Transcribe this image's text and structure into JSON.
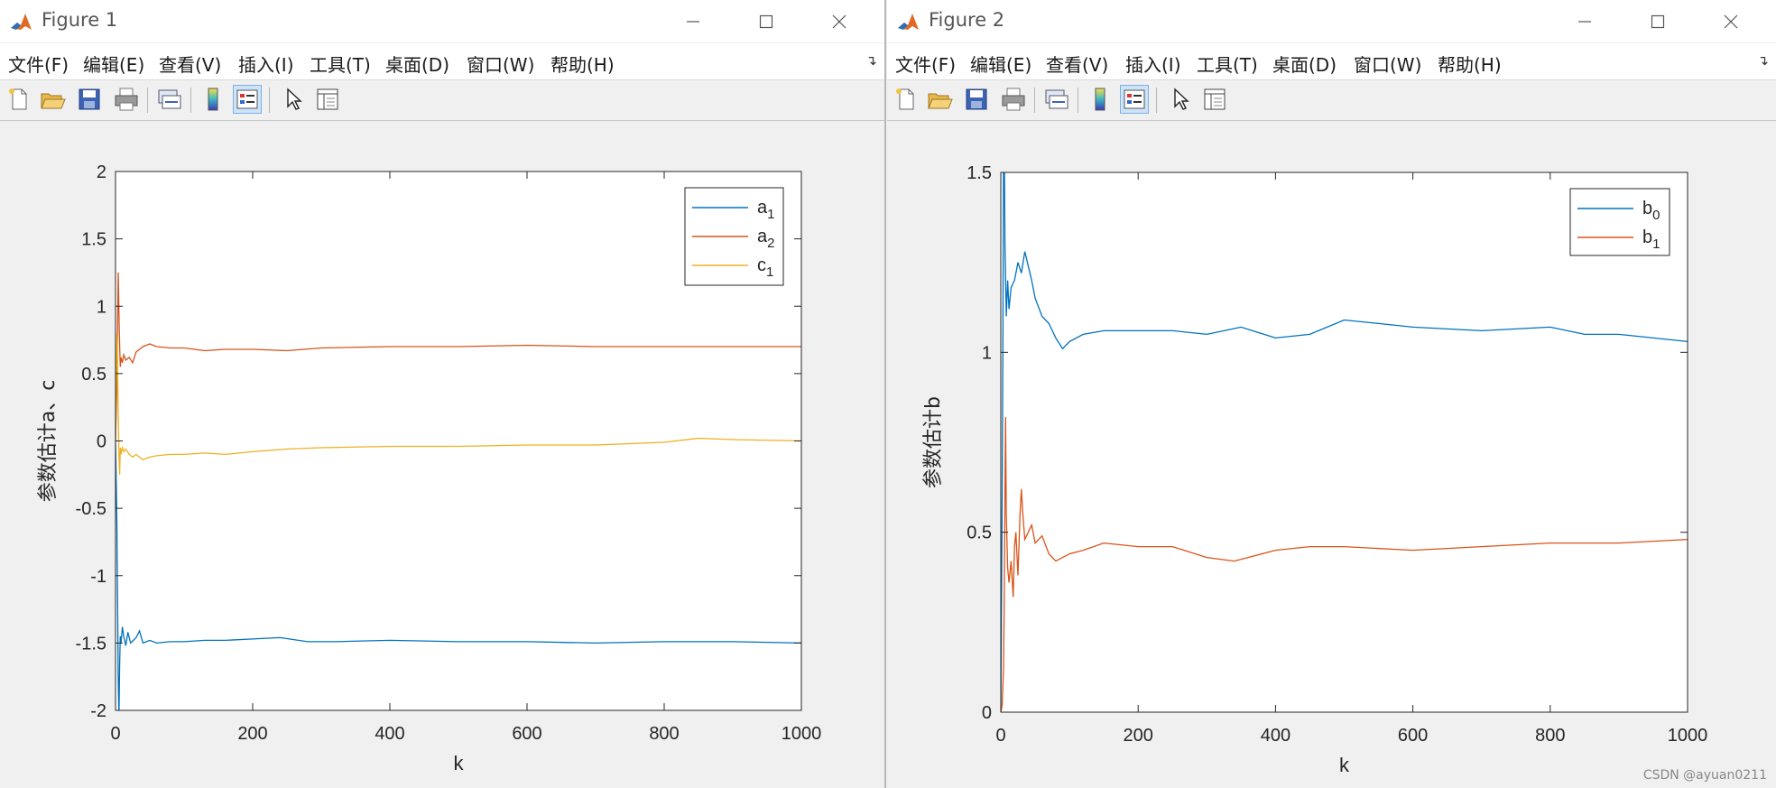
{
  "windows": [
    {
      "title": "Figure 1",
      "menu": [
        "文件(F)",
        "编辑(E)",
        "查看(V)",
        "插入(I)",
        "工具(T)",
        "桌面(D)",
        "窗口(W)",
        "帮助(H)"
      ]
    },
    {
      "title": "Figure 2",
      "menu": [
        "文件(F)",
        "编辑(E)",
        "查看(V)",
        "插入(I)",
        "工具(T)",
        "桌面(D)",
        "窗口(W)",
        "帮助(H)"
      ]
    }
  ],
  "toolbar_icons": [
    "new-figure-icon",
    "open-file-icon",
    "save-icon",
    "print-icon",
    "link-plot-icon",
    "colorbar-icon",
    "legend-icon",
    "edit-plot-icon",
    "property-inspector-icon"
  ],
  "watermark": "CSDN @ayuan0211",
  "colors": {
    "blue": "#0072BD",
    "orange": "#D95319",
    "yellow": "#EDB120"
  },
  "chart_data": [
    {
      "type": "line",
      "xlabel": "k",
      "ylabel": "参数估计a、c",
      "xlim": [
        0,
        1000
      ],
      "ylim": [
        -2,
        2
      ],
      "xticks": [
        "0",
        "200",
        "400",
        "600",
        "800",
        "1000"
      ],
      "yticks": [
        "-2",
        "-1.5",
        "-1",
        "-0.5",
        "0",
        "0.5",
        "1",
        "1.5",
        "2"
      ],
      "legend_position": "top-right",
      "series": [
        {
          "name": "a",
          "sub": "1",
          "color": "#0072BD",
          "x": [
            0,
            2,
            3,
            4,
            5,
            6,
            7,
            8,
            10,
            12,
            15,
            18,
            22,
            26,
            30,
            35,
            40,
            50,
            60,
            80,
            100,
            130,
            160,
            200,
            240,
            280,
            320,
            400,
            500,
            600,
            700,
            800,
            900,
            1000
          ],
          "y": [
            0,
            -0.6,
            -1.2,
            -1.75,
            -2.05,
            -1.65,
            -1.45,
            -1.5,
            -1.38,
            -1.45,
            -1.52,
            -1.42,
            -1.5,
            -1.48,
            -1.46,
            -1.41,
            -1.5,
            -1.48,
            -1.5,
            -1.49,
            -1.49,
            -1.48,
            -1.48,
            -1.47,
            -1.46,
            -1.49,
            -1.49,
            -1.48,
            -1.49,
            -1.49,
            -1.5,
            -1.49,
            -1.49,
            -1.5
          ]
        },
        {
          "name": "a",
          "sub": "2",
          "color": "#D95319",
          "x": [
            0,
            2,
            3,
            4,
            5,
            6,
            7,
            8,
            10,
            12,
            15,
            20,
            25,
            30,
            40,
            50,
            60,
            80,
            100,
            130,
            160,
            200,
            250,
            300,
            400,
            500,
            600,
            700,
            800,
            900,
            1000
          ],
          "y": [
            0,
            0.4,
            0.85,
            1.25,
            0.95,
            0.7,
            0.55,
            0.62,
            0.58,
            0.64,
            0.6,
            0.62,
            0.58,
            0.66,
            0.7,
            0.72,
            0.7,
            0.69,
            0.69,
            0.67,
            0.68,
            0.68,
            0.67,
            0.69,
            0.7,
            0.7,
            0.71,
            0.7,
            0.7,
            0.7,
            0.7
          ]
        },
        {
          "name": "c",
          "sub": "1",
          "color": "#EDB120",
          "x": [
            0,
            2,
            3,
            4,
            5,
            6,
            7,
            8,
            10,
            12,
            15,
            20,
            25,
            30,
            40,
            50,
            60,
            80,
            100,
            130,
            160,
            200,
            250,
            300,
            400,
            500,
            600,
            700,
            800,
            850,
            900,
            1000
          ],
          "y": [
            0,
            0.8,
            0.6,
            0.2,
            -0.1,
            -0.25,
            -0.05,
            -0.1,
            -0.05,
            -0.08,
            -0.06,
            -0.1,
            -0.12,
            -0.1,
            -0.14,
            -0.12,
            -0.11,
            -0.1,
            -0.1,
            -0.09,
            -0.1,
            -0.08,
            -0.06,
            -0.05,
            -0.04,
            -0.04,
            -0.03,
            -0.03,
            -0.01,
            0.02,
            0.01,
            0.0
          ]
        }
      ]
    },
    {
      "type": "line",
      "xlabel": "k",
      "ylabel": "参数估计b",
      "xlim": [
        0,
        1000
      ],
      "ylim": [
        0,
        1.5
      ],
      "xticks": [
        "0",
        "200",
        "400",
        "600",
        "800",
        "1000"
      ],
      "yticks": [
        "0",
        "0.5",
        "1",
        "1.5"
      ],
      "legend_position": "top-right",
      "series": [
        {
          "name": "b",
          "sub": "0",
          "color": "#0072BD",
          "x": [
            0,
            2,
            3,
            4,
            5,
            6,
            8,
            10,
            12,
            15,
            20,
            25,
            30,
            35,
            40,
            45,
            50,
            60,
            70,
            80,
            90,
            100,
            120,
            150,
            200,
            250,
            300,
            350,
            400,
            450,
            500,
            550,
            600,
            700,
            800,
            850,
            900,
            950,
            1000
          ],
          "y": [
            0,
            0.6,
            1.0,
            1.5,
            1.6,
            1.3,
            1.1,
            1.2,
            1.12,
            1.18,
            1.2,
            1.25,
            1.22,
            1.28,
            1.24,
            1.2,
            1.15,
            1.1,
            1.08,
            1.04,
            1.01,
            1.03,
            1.05,
            1.06,
            1.06,
            1.06,
            1.05,
            1.07,
            1.04,
            1.05,
            1.09,
            1.08,
            1.07,
            1.06,
            1.07,
            1.05,
            1.05,
            1.04,
            1.03
          ]
        },
        {
          "name": "b",
          "sub": "1",
          "color": "#D95319",
          "x": [
            0,
            2,
            4,
            5,
            6,
            7,
            8,
            10,
            12,
            15,
            18,
            20,
            22,
            25,
            28,
            30,
            32,
            35,
            40,
            45,
            50,
            60,
            70,
            80,
            100,
            120,
            150,
            200,
            250,
            300,
            340,
            400,
            450,
            500,
            600,
            700,
            800,
            900,
            1000
          ],
          "y": [
            0,
            0.02,
            0.12,
            0.3,
            0.6,
            0.82,
            0.55,
            0.4,
            0.36,
            0.42,
            0.32,
            0.46,
            0.5,
            0.38,
            0.55,
            0.62,
            0.55,
            0.48,
            0.5,
            0.52,
            0.47,
            0.49,
            0.44,
            0.42,
            0.44,
            0.45,
            0.47,
            0.46,
            0.46,
            0.43,
            0.42,
            0.45,
            0.46,
            0.46,
            0.45,
            0.46,
            0.47,
            0.47,
            0.48
          ]
        }
      ]
    }
  ]
}
